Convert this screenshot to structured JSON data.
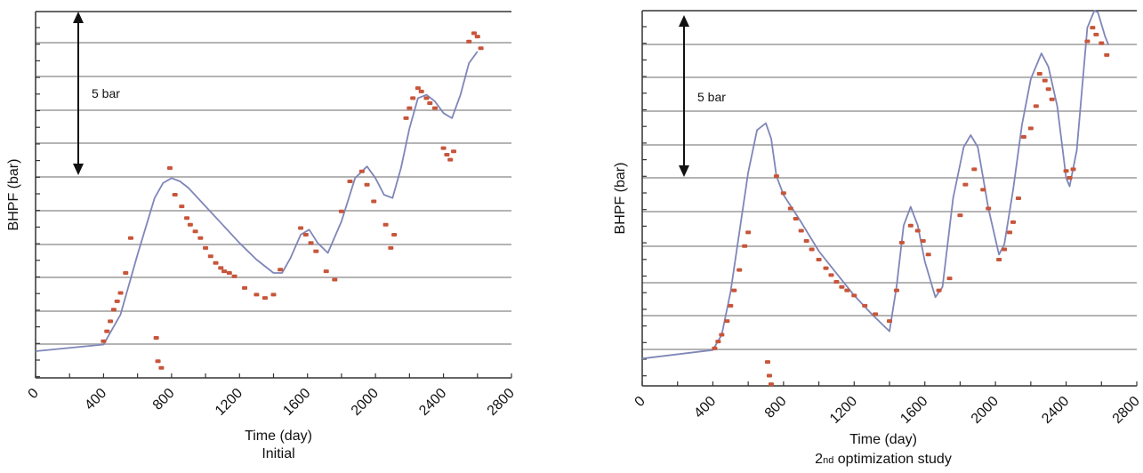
{
  "colors": {
    "grid": "#b4b4b4",
    "frame": "#333333",
    "line": "#7f86b8",
    "points": "#c8553a",
    "arrow": "#111111"
  },
  "chart_data": [
    {
      "type": "scatter",
      "title": "",
      "subtitle": "Initial",
      "xlabel": "Time (day)",
      "ylabel": "BHPF (bar)",
      "xlim": [
        0,
        2800
      ],
      "ylim": [
        0,
        22
      ],
      "x_ticks": [
        "0",
        "400",
        "800",
        "1200",
        "1600",
        "2000",
        "2400",
        "2800"
      ],
      "grid": "horizontal",
      "annotation": "5 bar",
      "series": [
        {
          "kind": "line",
          "x": [
            0,
            400,
            500,
            600,
            700,
            750,
            800,
            850,
            900,
            1000,
            1100,
            1200,
            1300,
            1400,
            1450,
            1500,
            1560,
            1610,
            1660,
            1720,
            1800,
            1880,
            1950,
            2000,
            2050,
            2100,
            2150,
            2200,
            2250,
            2300,
            2350,
            2400,
            2450,
            2500,
            2550,
            2600
          ],
          "y": [
            1.6,
            2.0,
            3.8,
            7.4,
            10.8,
            11.7,
            12.0,
            11.8,
            11.4,
            10.3,
            9.2,
            8.1,
            7.1,
            6.3,
            6.3,
            7.2,
            8.6,
            8.9,
            8.1,
            7.5,
            9.4,
            12.0,
            12.7,
            12.0,
            11.0,
            10.8,
            12.6,
            15.0,
            16.8,
            17.0,
            16.6,
            15.9,
            15.6,
            17.0,
            18.9,
            19.6
          ]
        },
        {
          "kind": "points",
          "x": [
            400,
            420,
            440,
            460,
            480,
            500,
            530,
            560,
            710,
            720,
            740,
            790,
            820,
            860,
            890,
            910,
            940,
            970,
            1000,
            1030,
            1060,
            1090,
            1110,
            1140,
            1170,
            1230,
            1300,
            1350,
            1400,
            1440,
            1560,
            1590,
            1620,
            1650,
            1710,
            1760,
            1800,
            1850,
            1920,
            1950,
            1990,
            2060,
            2090,
            2110,
            2180,
            2200,
            2220,
            2250,
            2270,
            2300,
            2320,
            2350,
            2400,
            2420,
            2440,
            2460,
            2550,
            2580,
            2600,
            2620
          ],
          "y": [
            2.2,
            2.8,
            3.4,
            4.1,
            4.6,
            5.1,
            6.3,
            8.4,
            2.4,
            1.0,
            0.6,
            12.6,
            11.0,
            10.3,
            9.6,
            9.2,
            8.8,
            8.4,
            7.8,
            7.3,
            6.9,
            6.6,
            6.4,
            6.3,
            6.1,
            5.4,
            5.0,
            4.8,
            5.0,
            6.5,
            9.0,
            8.6,
            8.1,
            7.6,
            6.4,
            5.9,
            10.0,
            11.8,
            12.4,
            11.6,
            10.6,
            9.2,
            7.8,
            8.6,
            15.6,
            16.2,
            16.8,
            17.4,
            17.2,
            16.8,
            16.5,
            16.2,
            13.8,
            13.4,
            13.1,
            13.6,
            20.2,
            20.7,
            20.5,
            19.8
          ]
        }
      ]
    },
    {
      "type": "scatter",
      "title": "",
      "subtitle_main": "2",
      "subtitle_small": "nd",
      "subtitle_rest": " optimization study",
      "xlabel": "Time (day)",
      "ylabel": "BHPF (bar)",
      "xlim": [
        0,
        2800
      ],
      "ylim": [
        0,
        22
      ],
      "x_ticks": [
        "0",
        "400",
        "800",
        "1200",
        "1600",
        "2000",
        "2400",
        "2800"
      ],
      "grid": "horizontal",
      "annotation": "5 bar",
      "series": [
        {
          "kind": "line",
          "x": [
            0,
            400,
            450,
            500,
            550,
            600,
            650,
            700,
            730,
            760,
            800,
            900,
            1000,
            1100,
            1200,
            1300,
            1400,
            1440,
            1480,
            1520,
            1560,
            1600,
            1660,
            1700,
            1760,
            1820,
            1860,
            1900,
            1960,
            2020,
            2050,
            2100,
            2150,
            2200,
            2260,
            2300,
            2350,
            2400,
            2420,
            2460,
            2520,
            2560,
            2580,
            2620,
            2640
          ],
          "y": [
            1.6,
            2.1,
            3.0,
            5.5,
            9.0,
            12.5,
            15.0,
            15.4,
            14.5,
            12.3,
            11.2,
            9.6,
            7.9,
            6.6,
            5.3,
            4.2,
            3.2,
            5.8,
            9.4,
            10.5,
            9.4,
            7.3,
            5.2,
            5.8,
            11.0,
            14.0,
            14.7,
            14.0,
            10.4,
            7.7,
            8.3,
            11.5,
            15.3,
            18.0,
            19.5,
            18.7,
            16.4,
            12.2,
            11.7,
            13.8,
            21.0,
            22.0,
            21.9,
            20.5,
            20.0
          ]
        },
        {
          "kind": "points",
          "x": [
            410,
            430,
            450,
            480,
            500,
            520,
            550,
            580,
            600,
            710,
            720,
            730,
            760,
            800,
            840,
            870,
            900,
            930,
            960,
            1000,
            1040,
            1070,
            1100,
            1130,
            1160,
            1200,
            1260,
            1320,
            1400,
            1440,
            1470,
            1520,
            1560,
            1590,
            1620,
            1680,
            1740,
            1800,
            1830,
            1880,
            1930,
            1960,
            2020,
            2050,
            2080,
            2100,
            2130,
            2160,
            2200,
            2230,
            2250,
            2280,
            2300,
            2320,
            2400,
            2420,
            2440,
            2520,
            2550,
            2570,
            2600,
            2630
          ],
          "y": [
            2.2,
            2.6,
            3.0,
            3.8,
            4.7,
            5.6,
            6.8,
            8.2,
            9.0,
            1.4,
            0.6,
            0.1,
            12.3,
            11.3,
            10.4,
            9.8,
            9.1,
            8.5,
            8.0,
            7.4,
            6.9,
            6.5,
            6.1,
            5.8,
            5.6,
            5.3,
            4.7,
            4.2,
            3.8,
            5.6,
            8.4,
            9.4,
            9.1,
            8.5,
            7.7,
            5.6,
            6.3,
            10.0,
            11.8,
            12.7,
            11.5,
            10.4,
            7.4,
            8.0,
            9.0,
            9.6,
            11.0,
            14.6,
            15.1,
            16.4,
            18.3,
            17.9,
            17.4,
            16.8,
            12.6,
            12.2,
            12.7,
            20.2,
            21.0,
            20.6,
            20.1,
            19.4
          ]
        }
      ]
    }
  ]
}
